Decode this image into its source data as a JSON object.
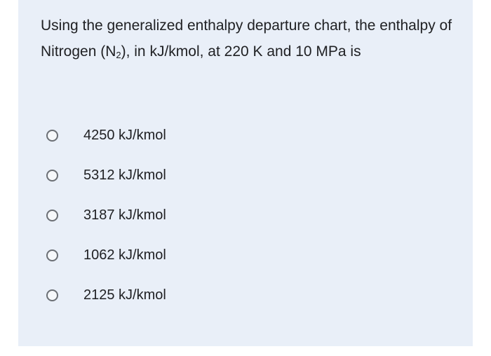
{
  "question": {
    "text_before": "Using the generalized enthalpy departure chart, the enthalpy of Nitrogen (N",
    "subscript": "2",
    "text_after": "), in kJ/kmol, at 220 K and 10 MPa is"
  },
  "options": [
    {
      "label": "4250 kJ/kmol",
      "selected": false
    },
    {
      "label": "5312 kJ/kmol",
      "selected": false
    },
    {
      "label": "3187 kJ/kmol",
      "selected": false
    },
    {
      "label": "1062 kJ/kmol",
      "selected": false
    },
    {
      "label": "2125 kJ/kmol",
      "selected": false
    }
  ],
  "colors": {
    "card_background": "#e9eff8",
    "text": "#202124",
    "radio_border": "#6b6f75"
  }
}
